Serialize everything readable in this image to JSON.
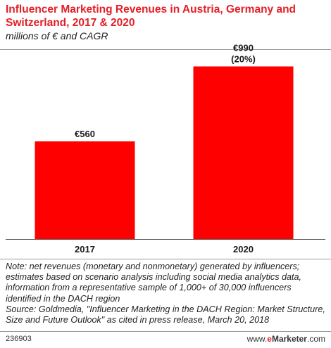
{
  "header": {
    "title": "Influencer Marketing Revenues in Austria, Germany and Switzerland, 2017 & 2020",
    "subtitle": "millions of € and CAGR"
  },
  "chart_data": {
    "type": "bar",
    "categories": [
      "2017",
      "2020"
    ],
    "values": [
      560,
      990
    ],
    "value_labels": [
      "€560",
      "€990"
    ],
    "annotations": [
      "",
      "(20%)"
    ],
    "ylim": [
      0,
      1000
    ],
    "grid": false,
    "bar_color": "#ff0000"
  },
  "notes": {
    "note": "Note: net revenues (monetary and nonmonetary) generated by influencers; estimates based on scenario analysis including social media analytics data, information from a representative sample of 1,000+ of 30,000 influencers identified in the DACH region",
    "source": "Source: Goldmedia, \"Influencer Marketing in the DACH Region: Market Structure, Size and Future Outlook\" as cited in press release, March 20, 2018"
  },
  "footer": {
    "chart_id": "236903",
    "brand_prefix": "www.",
    "brand_mark": "e",
    "brand_main": "Marketer",
    "brand_suffix": ".com"
  }
}
